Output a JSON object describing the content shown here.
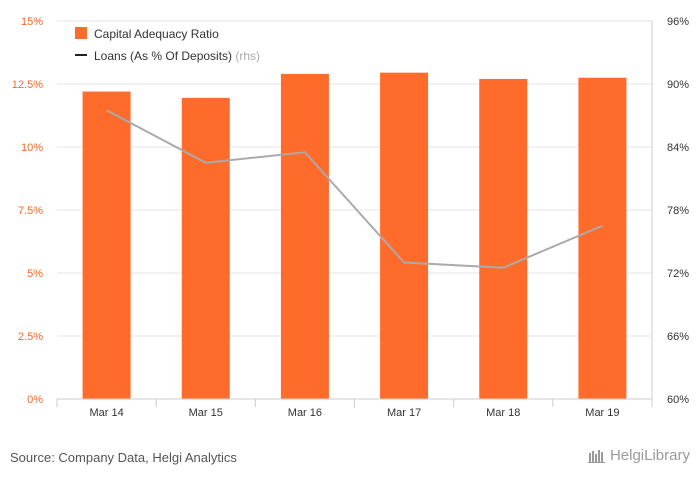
{
  "chart_data": {
    "type": "bar",
    "categories": [
      "Mar 14",
      "Mar 15",
      "Mar 16",
      "Mar 17",
      "Mar 18",
      "Mar 19"
    ],
    "series": [
      {
        "name": "Capital Adequacy Ratio",
        "type": "bar",
        "axis": "left",
        "color": "#ff6b2b",
        "values": [
          12.2,
          11.95,
          12.9,
          12.95,
          12.7,
          12.75
        ]
      },
      {
        "name": "Loans (As % Of Deposits)",
        "name_suffix": "(rhs)",
        "type": "line",
        "axis": "right",
        "color": "#aaaaaa",
        "values": [
          87.5,
          82.5,
          83.5,
          73.0,
          72.5,
          76.5
        ]
      }
    ],
    "y_left": {
      "ylim": [
        0,
        15
      ],
      "ticks": [
        0,
        2.5,
        5,
        7.5,
        10,
        12.5,
        15
      ],
      "tick_labels": [
        "0%",
        "2.5%",
        "5%",
        "7.5%",
        "10%",
        "12.5%",
        "15%"
      ]
    },
    "y_right": {
      "ylim": [
        60,
        96
      ],
      "ticks": [
        60,
        66,
        72,
        78,
        84,
        90,
        96
      ],
      "tick_labels": [
        "60%",
        "66%",
        "72%",
        "78%",
        "84%",
        "90%",
        "96%"
      ]
    },
    "grid": true,
    "legend_position": "top-left"
  },
  "footer": {
    "source": "Source: Company Data, Helgi Analytics",
    "brand": "HelgiLibrary",
    "brand_icon": "library-icon"
  },
  "colors": {
    "bar": "#ff6b2b",
    "line": "#aaaaaa",
    "left_axis_text": "#f26a2c"
  }
}
